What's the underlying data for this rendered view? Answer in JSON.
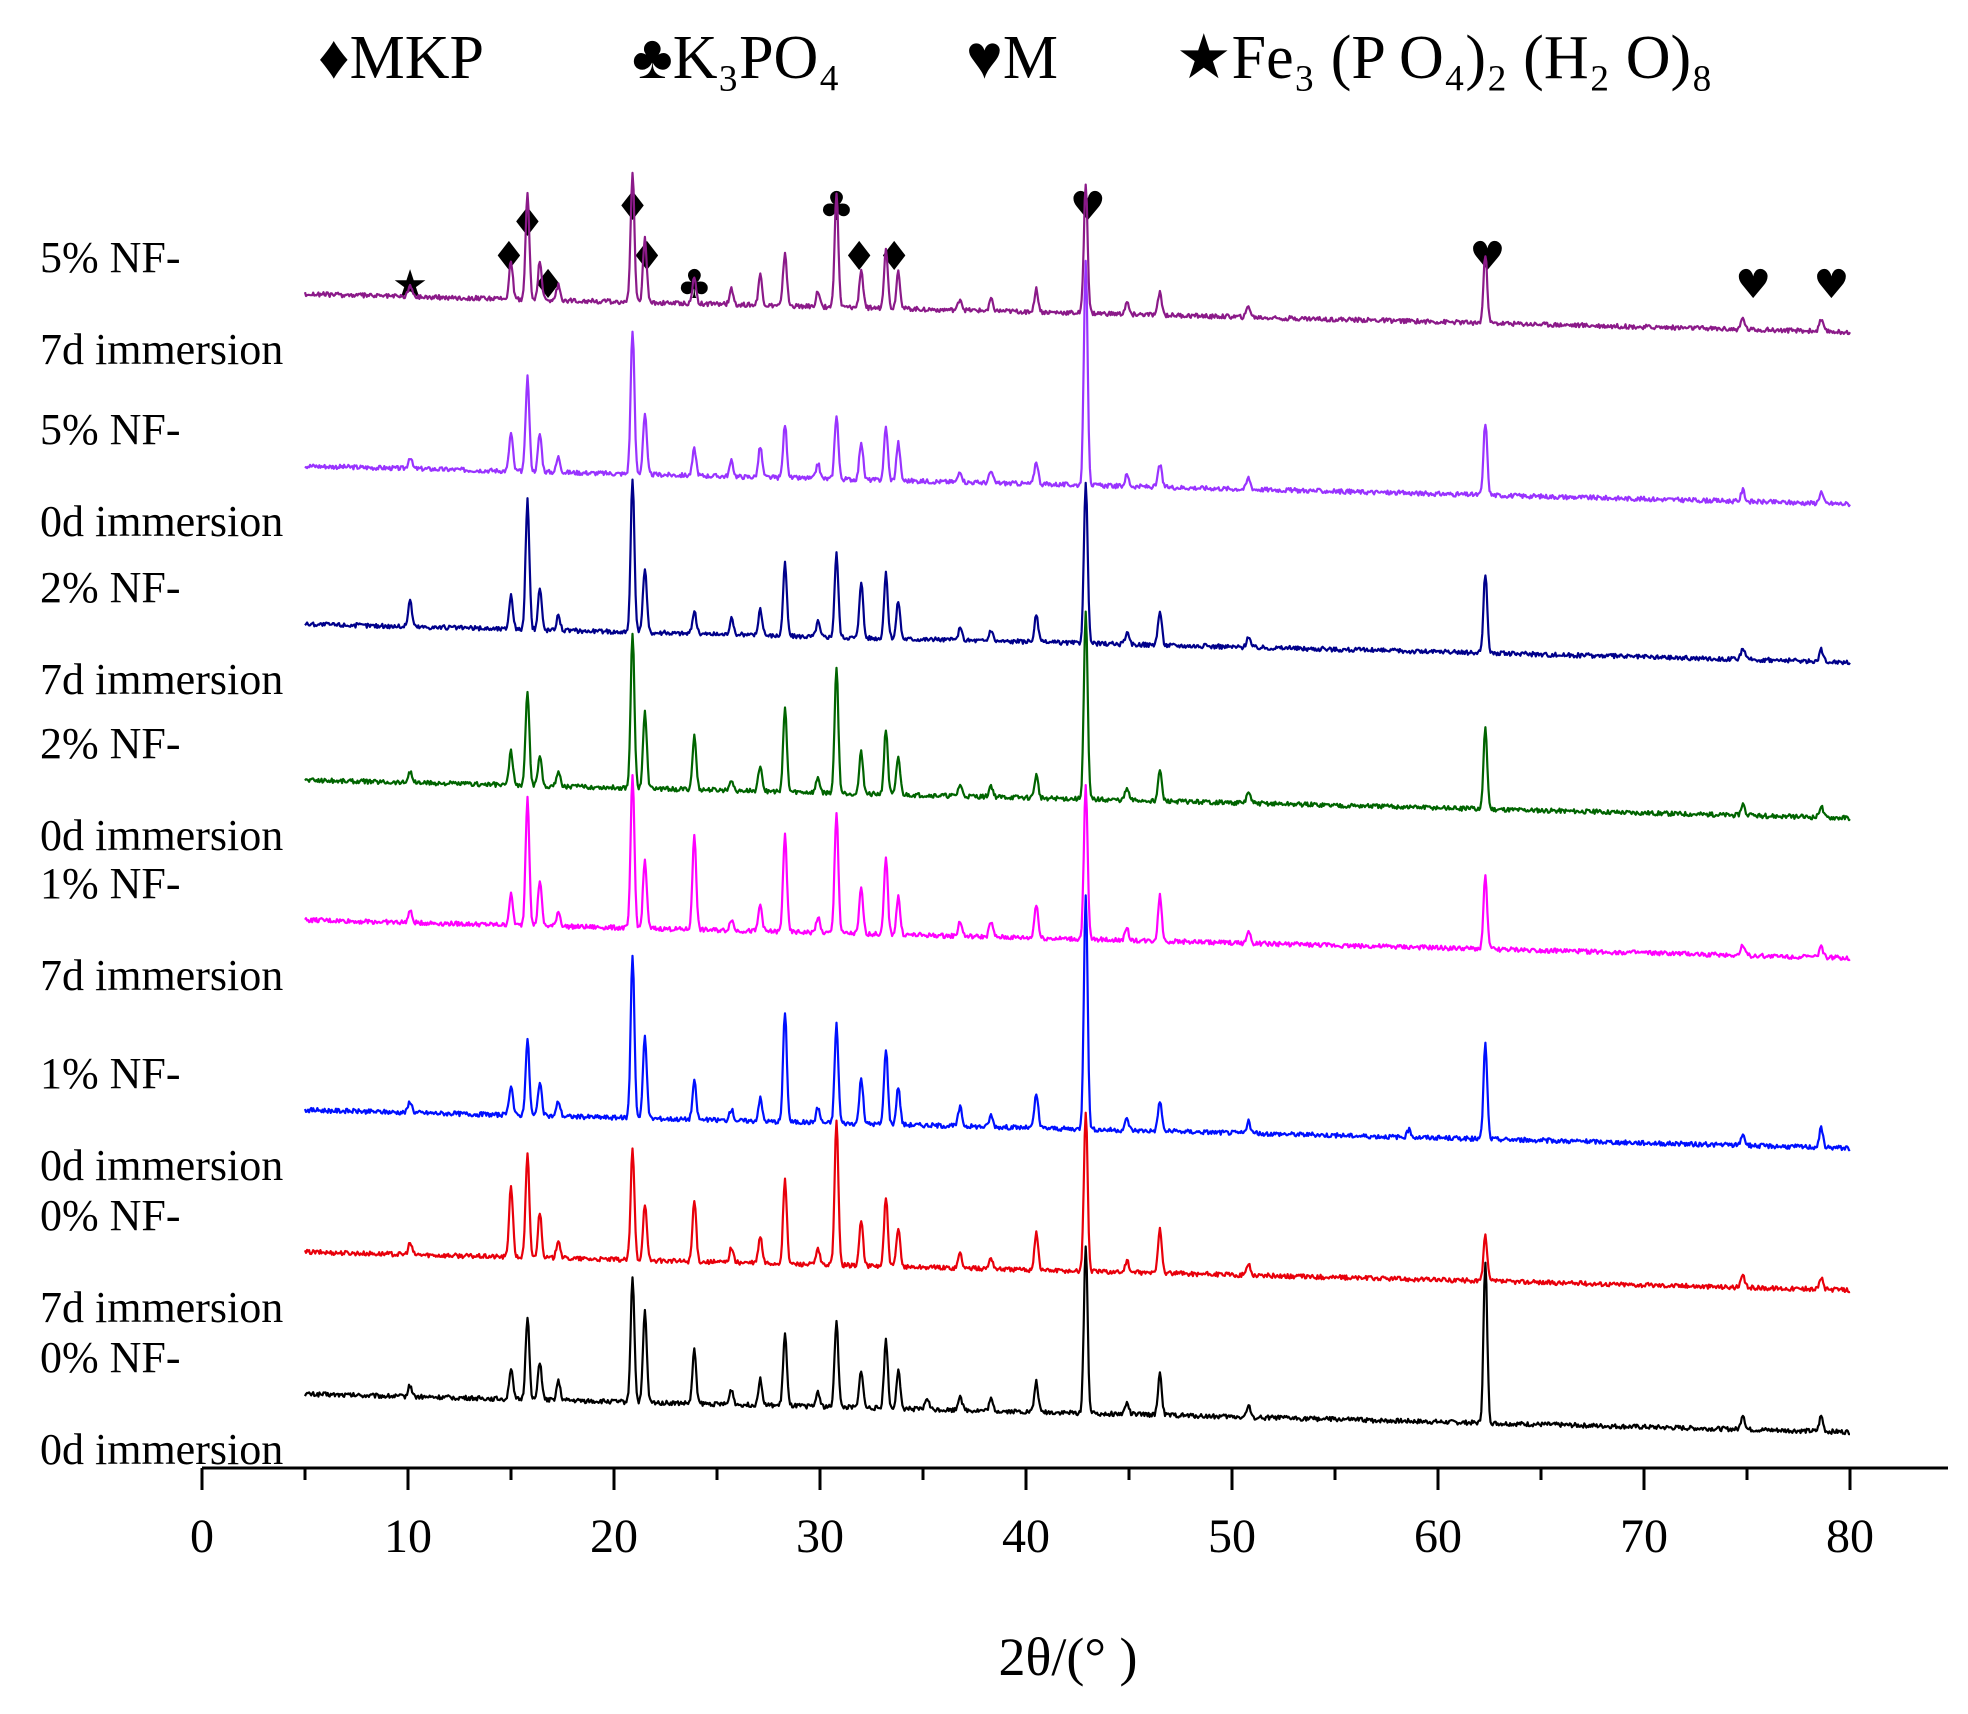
{
  "chart_data": {
    "type": "line",
    "title": "",
    "xlabel": "2θ/(° )",
    "ylabel": "",
    "xlim": [
      0,
      85
    ],
    "xticks": [
      0,
      10,
      20,
      30,
      40,
      50,
      60,
      70,
      80
    ],
    "legend": [
      {
        "symbol": "♦",
        "label": "MKP"
      },
      {
        "symbol": "♣",
        "label": "K₃PO₄"
      },
      {
        "symbol": "♥",
        "label": "M"
      },
      {
        "symbol": "★",
        "label": "Fe₃ (P O₄)₂ (H₂ O)₈"
      }
    ],
    "series": [
      {
        "line1": "0% NF-",
        "line2": "0d immersion",
        "color": "#000000",
        "baseline_start": 0.12,
        "baseline_end": 0.02,
        "peaks": [
          [
            10.1,
            0.03
          ],
          [
            15.0,
            0.08
          ],
          [
            15.8,
            0.22
          ],
          [
            16.4,
            0.1
          ],
          [
            17.3,
            0.05
          ],
          [
            20.9,
            0.33
          ],
          [
            21.5,
            0.24
          ],
          [
            23.9,
            0.14
          ],
          [
            25.7,
            0.04
          ],
          [
            27.1,
            0.07
          ],
          [
            28.3,
            0.19
          ],
          [
            29.9,
            0.04
          ],
          [
            30.8,
            0.23
          ],
          [
            32.0,
            0.1
          ],
          [
            33.2,
            0.18
          ],
          [
            33.8,
            0.1
          ],
          [
            35.2,
            0.03
          ],
          [
            36.8,
            0.04
          ],
          [
            38.3,
            0.03
          ],
          [
            40.5,
            0.08
          ],
          [
            42.9,
            0.44
          ],
          [
            44.9,
            0.03
          ],
          [
            46.5,
            0.11
          ],
          [
            50.8,
            0.03
          ],
          [
            62.3,
            0.42
          ],
          [
            74.8,
            0.04
          ],
          [
            78.6,
            0.04
          ]
        ]
      },
      {
        "line1": "0% NF-",
        "line2": "7d immersion",
        "color": "#e8000b",
        "baseline_start": 0.12,
        "baseline_end": 0.02,
        "peaks": [
          [
            10.1,
            0.03
          ],
          [
            15.0,
            0.19
          ],
          [
            15.8,
            0.27
          ],
          [
            16.4,
            0.12
          ],
          [
            17.3,
            0.05
          ],
          [
            20.9,
            0.29
          ],
          [
            21.5,
            0.15
          ],
          [
            23.9,
            0.16
          ],
          [
            25.7,
            0.04
          ],
          [
            27.1,
            0.07
          ],
          [
            28.3,
            0.22
          ],
          [
            29.9,
            0.04
          ],
          [
            30.8,
            0.38
          ],
          [
            32.0,
            0.12
          ],
          [
            33.2,
            0.18
          ],
          [
            33.8,
            0.1
          ],
          [
            36.8,
            0.04
          ],
          [
            38.3,
            0.03
          ],
          [
            40.5,
            0.1
          ],
          [
            42.9,
            0.42
          ],
          [
            44.9,
            0.03
          ],
          [
            46.5,
            0.12
          ],
          [
            50.8,
            0.03
          ],
          [
            62.3,
            0.12
          ],
          [
            74.8,
            0.03
          ],
          [
            78.6,
            0.03
          ]
        ]
      },
      {
        "line1": "1% NF-",
        "line2": "0d immersion",
        "color": "#0010ff",
        "baseline_start": 0.12,
        "baseline_end": 0.02,
        "peaks": [
          [
            10.1,
            0.03
          ],
          [
            15.0,
            0.08
          ],
          [
            15.8,
            0.2
          ],
          [
            16.4,
            0.09
          ],
          [
            17.3,
            0.04
          ],
          [
            20.9,
            0.43
          ],
          [
            21.5,
            0.22
          ],
          [
            23.9,
            0.1
          ],
          [
            25.7,
            0.03
          ],
          [
            27.1,
            0.06
          ],
          [
            28.3,
            0.29
          ],
          [
            29.9,
            0.04
          ],
          [
            30.8,
            0.26
          ],
          [
            32.0,
            0.12
          ],
          [
            33.2,
            0.2
          ],
          [
            33.8,
            0.1
          ],
          [
            36.8,
            0.05
          ],
          [
            38.3,
            0.03
          ],
          [
            40.5,
            0.09
          ],
          [
            42.9,
            0.62
          ],
          [
            44.9,
            0.03
          ],
          [
            46.5,
            0.08
          ],
          [
            50.8,
            0.03
          ],
          [
            58.6,
            0.02
          ],
          [
            62.3,
            0.25
          ],
          [
            74.8,
            0.03
          ],
          [
            78.6,
            0.05
          ]
        ]
      },
      {
        "line1": "1% NF-",
        "line2": "7d immersion",
        "color": "#ff00ff",
        "baseline_start": 0.12,
        "baseline_end": 0.02,
        "peaks": [
          [
            10.1,
            0.03
          ],
          [
            15.0,
            0.08
          ],
          [
            15.8,
            0.34
          ],
          [
            16.4,
            0.12
          ],
          [
            17.3,
            0.04
          ],
          [
            20.9,
            0.4
          ],
          [
            21.5,
            0.18
          ],
          [
            23.9,
            0.25
          ],
          [
            25.7,
            0.03
          ],
          [
            27.1,
            0.07
          ],
          [
            28.3,
            0.26
          ],
          [
            29.9,
            0.04
          ],
          [
            30.8,
            0.32
          ],
          [
            32.0,
            0.12
          ],
          [
            33.2,
            0.2
          ],
          [
            33.8,
            0.1
          ],
          [
            36.8,
            0.04
          ],
          [
            38.3,
            0.04
          ],
          [
            40.5,
            0.09
          ],
          [
            42.9,
            0.4
          ],
          [
            44.9,
            0.03
          ],
          [
            46.5,
            0.12
          ],
          [
            50.8,
            0.03
          ],
          [
            62.3,
            0.19
          ],
          [
            74.8,
            0.03
          ],
          [
            78.6,
            0.03
          ]
        ]
      },
      {
        "line1": "2% NF-",
        "line2": "0d immersion",
        "color": "#006400",
        "baseline_start": 0.12,
        "baseline_end": 0.02,
        "peaks": [
          [
            10.1,
            0.03
          ],
          [
            15.0,
            0.09
          ],
          [
            15.8,
            0.25
          ],
          [
            16.4,
            0.08
          ],
          [
            17.3,
            0.04
          ],
          [
            20.9,
            0.41
          ],
          [
            21.5,
            0.2
          ],
          [
            23.9,
            0.14
          ],
          [
            25.7,
            0.03
          ],
          [
            27.1,
            0.07
          ],
          [
            28.3,
            0.22
          ],
          [
            29.9,
            0.04
          ],
          [
            30.8,
            0.33
          ],
          [
            32.0,
            0.11
          ],
          [
            33.2,
            0.17
          ],
          [
            33.8,
            0.1
          ],
          [
            36.8,
            0.03
          ],
          [
            38.3,
            0.03
          ],
          [
            40.5,
            0.06
          ],
          [
            42.9,
            0.49
          ],
          [
            44.9,
            0.03
          ],
          [
            46.5,
            0.08
          ],
          [
            50.8,
            0.03
          ],
          [
            62.3,
            0.21
          ],
          [
            74.8,
            0.03
          ],
          [
            78.6,
            0.03
          ]
        ]
      },
      {
        "line1": "2% NF-",
        "line2": "7d immersion",
        "color": "#00008b",
        "baseline_start": 0.12,
        "baseline_end": 0.02,
        "peaks": [
          [
            10.1,
            0.07
          ],
          [
            15.0,
            0.09
          ],
          [
            15.8,
            0.34
          ],
          [
            16.4,
            0.11
          ],
          [
            17.3,
            0.04
          ],
          [
            20.9,
            0.4
          ],
          [
            21.5,
            0.17
          ],
          [
            23.9,
            0.06
          ],
          [
            25.7,
            0.04
          ],
          [
            27.1,
            0.07
          ],
          [
            28.3,
            0.19
          ],
          [
            29.9,
            0.04
          ],
          [
            30.8,
            0.22
          ],
          [
            32.0,
            0.15
          ],
          [
            33.2,
            0.17
          ],
          [
            33.8,
            0.1
          ],
          [
            36.8,
            0.03
          ],
          [
            38.3,
            0.03
          ],
          [
            40.5,
            0.07
          ],
          [
            42.9,
            0.42
          ],
          [
            44.9,
            0.03
          ],
          [
            46.5,
            0.09
          ],
          [
            50.8,
            0.03
          ],
          [
            62.3,
            0.21
          ],
          [
            74.8,
            0.03
          ],
          [
            78.6,
            0.03
          ]
        ]
      },
      {
        "line1": "5% NF-",
        "line2": "0d immersion",
        "color": "#9933ff",
        "baseline_start": 0.12,
        "baseline_end": 0.02,
        "peaks": [
          [
            10.1,
            0.03
          ],
          [
            15.0,
            0.1
          ],
          [
            15.8,
            0.25
          ],
          [
            16.4,
            0.1
          ],
          [
            17.3,
            0.04
          ],
          [
            20.9,
            0.38
          ],
          [
            21.5,
            0.16
          ],
          [
            23.9,
            0.07
          ],
          [
            25.7,
            0.04
          ],
          [
            27.1,
            0.08
          ],
          [
            28.3,
            0.14
          ],
          [
            29.9,
            0.04
          ],
          [
            30.8,
            0.17
          ],
          [
            32.0,
            0.1
          ],
          [
            33.2,
            0.14
          ],
          [
            33.8,
            0.1
          ],
          [
            36.8,
            0.03
          ],
          [
            38.3,
            0.03
          ],
          [
            40.5,
            0.06
          ],
          [
            42.9,
            0.59
          ],
          [
            44.9,
            0.03
          ],
          [
            46.5,
            0.06
          ],
          [
            50.8,
            0.03
          ],
          [
            62.3,
            0.19
          ],
          [
            74.8,
            0.03
          ],
          [
            78.6,
            0.03
          ]
        ]
      },
      {
        "line1": "5% NF-",
        "line2": "7d immersion",
        "color": "#8b1a89",
        "baseline_start": 0.12,
        "baseline_end": 0.02,
        "peaks": [
          [
            10.1,
            0.03
          ],
          [
            15.0,
            0.1
          ],
          [
            15.8,
            0.28
          ],
          [
            16.4,
            0.1
          ],
          [
            17.3,
            0.04
          ],
          [
            20.9,
            0.34
          ],
          [
            21.5,
            0.17
          ],
          [
            23.9,
            0.07
          ],
          [
            25.7,
            0.04
          ],
          [
            27.1,
            0.08
          ],
          [
            28.3,
            0.14
          ],
          [
            29.9,
            0.04
          ],
          [
            30.8,
            0.3
          ],
          [
            32.0,
            0.1
          ],
          [
            33.2,
            0.16
          ],
          [
            33.8,
            0.1
          ],
          [
            36.8,
            0.03
          ],
          [
            38.3,
            0.03
          ],
          [
            40.5,
            0.06
          ],
          [
            42.9,
            0.34
          ],
          [
            44.9,
            0.03
          ],
          [
            46.5,
            0.06
          ],
          [
            50.8,
            0.03
          ],
          [
            62.3,
            0.18
          ],
          [
            74.8,
            0.03
          ],
          [
            78.6,
            0.03
          ]
        ]
      }
    ],
    "annotations": [
      {
        "symbol": "★",
        "x": 10.1,
        "level": 0
      },
      {
        "symbol": "♦",
        "x": 14.9,
        "level": 1
      },
      {
        "symbol": "♦",
        "x": 15.8,
        "level": 2
      },
      {
        "symbol": "♦",
        "x": 16.8,
        "level": 0
      },
      {
        "symbol": "♦",
        "x": 20.9,
        "level": 3
      },
      {
        "symbol": "♦",
        "x": 21.6,
        "level": 1
      },
      {
        "symbol": "♣",
        "x": 23.9,
        "level": 0
      },
      {
        "symbol": "♣",
        "x": 30.8,
        "level": 3
      },
      {
        "symbol": "♦",
        "x": 31.9,
        "level": 1
      },
      {
        "symbol": "♦",
        "x": 33.6,
        "level": 1
      },
      {
        "symbol": "♥",
        "x": 43.0,
        "level": 3
      },
      {
        "symbol": "♥",
        "x": 62.4,
        "level": 1
      },
      {
        "symbol": "♥",
        "x": 75.3,
        "level": 0
      },
      {
        "symbol": "♥",
        "x": 79.1,
        "level": 0
      }
    ]
  }
}
